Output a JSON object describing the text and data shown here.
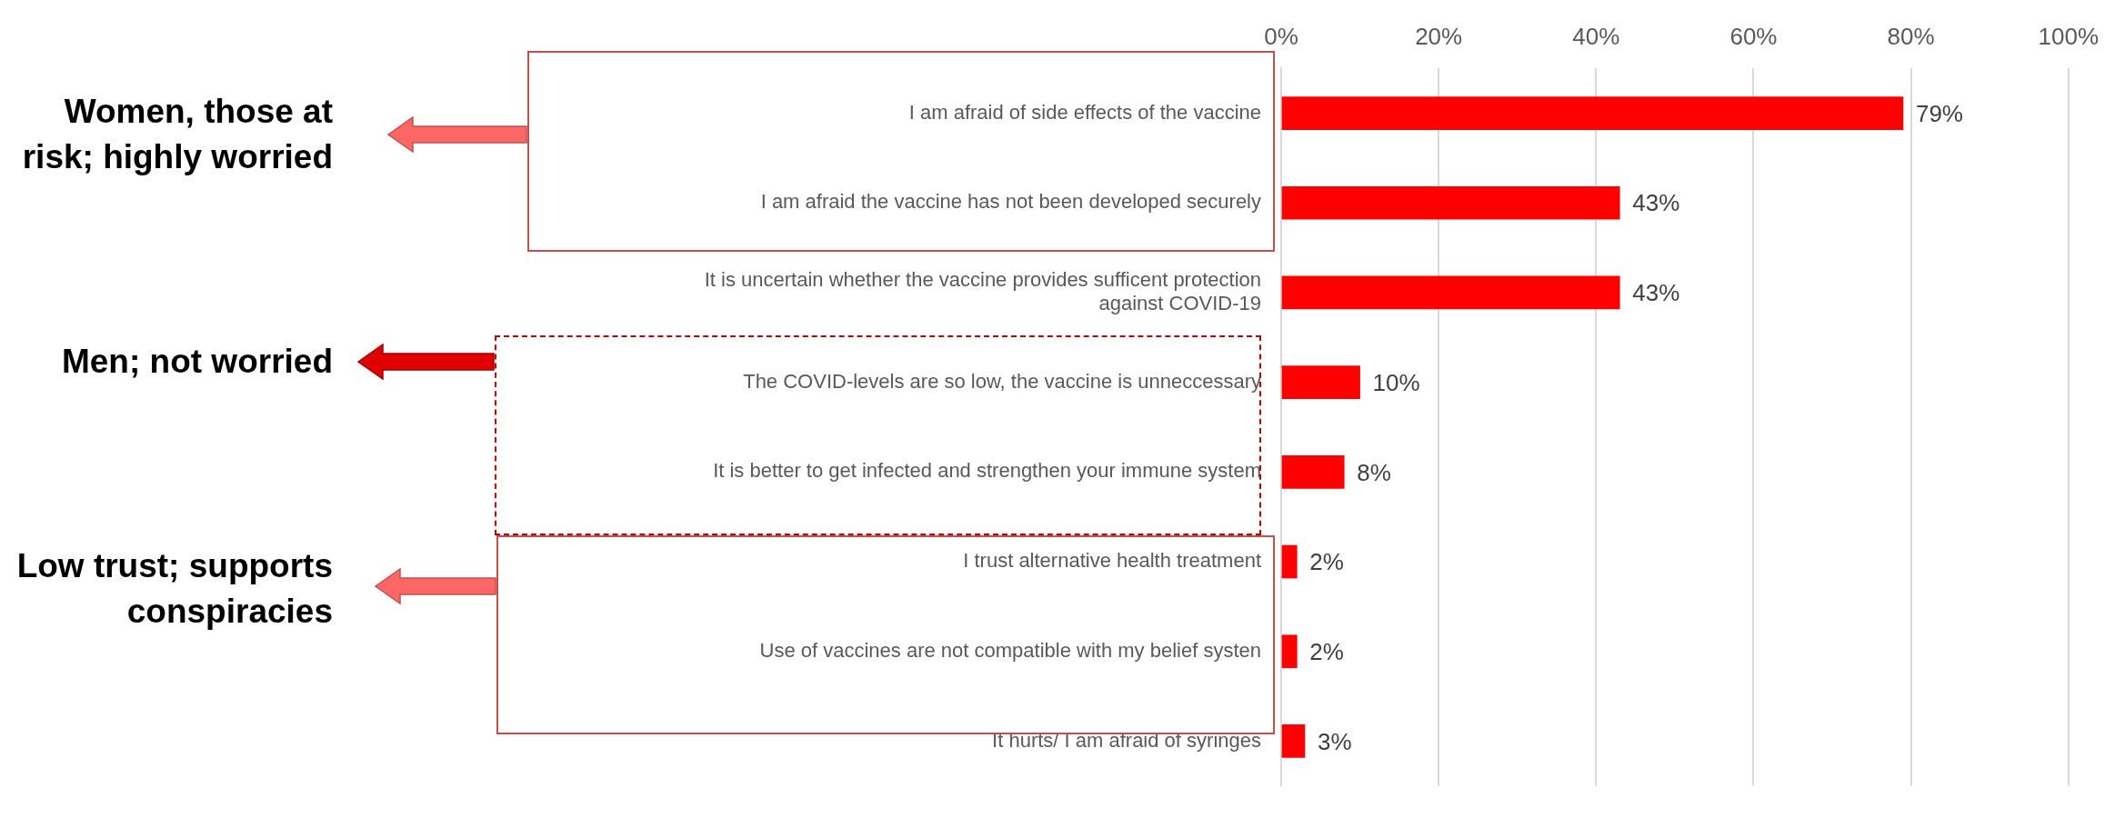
{
  "chart_data": {
    "type": "bar",
    "orientation": "horizontal",
    "categories": [
      "I am afraid of side effects of the vaccine",
      "I am afraid the vaccine has not been developed securely",
      "It is uncertain whether the vaccine provides sufficent protection against COVID-19",
      "The COVID-levels are so low, the vaccine is unneccessary",
      "It is better to get infected and strengthen your immune system",
      "I trust alternative health treatment",
      "Use of vaccines are not compatible with my belief systen",
      "It hurts/ I am afraid of syringes"
    ],
    "values": [
      79,
      43,
      43,
      10,
      8,
      2,
      2,
      3
    ],
    "value_labels": [
      "79%",
      "43%",
      "43%",
      "10%",
      "8%",
      "2%",
      "2%",
      "3%"
    ],
    "color": "#ff0000",
    "xlim": [
      0,
      100
    ],
    "xticks": [
      {
        "value": 0,
        "label": "0%"
      },
      {
        "value": 20,
        "label": "20%"
      },
      {
        "value": 40,
        "label": "40%"
      },
      {
        "value": 60,
        "label": "60%"
      },
      {
        "value": 80,
        "label": "80%"
      },
      {
        "value": 100,
        "label": "100%"
      }
    ],
    "grid": "x",
    "annotations": [
      "Women, those at risk; highly worried",
      "Men; not worried",
      "Low trust; supports conspiracies"
    ]
  }
}
